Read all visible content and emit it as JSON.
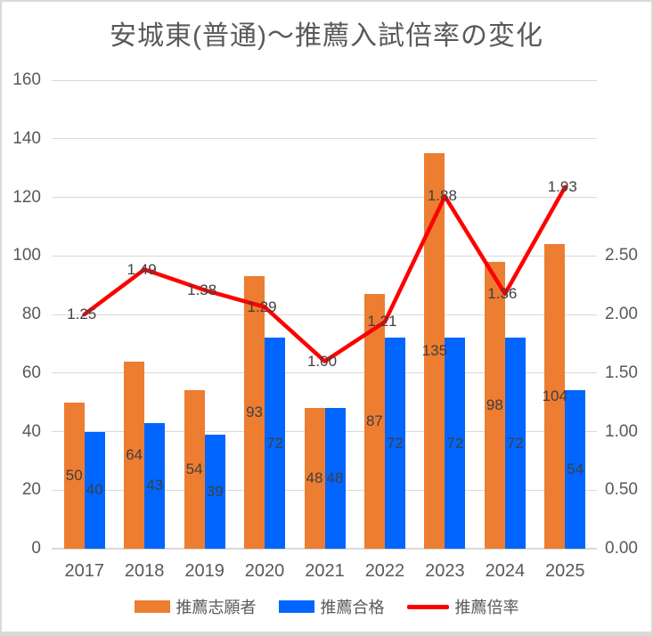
{
  "colors": {
    "applicants_bar": "#ED7D31",
    "accepted_bar": "#0066FF",
    "ratio_line": "#FF0000",
    "title_text": "#595959",
    "axis_text": "#595959",
    "data_label_text": "#3F3F3F",
    "gridline": "#D9D9D9",
    "frame_border": "#D9D9D9"
  },
  "chart_data": {
    "type": "bar",
    "subtype": "combo-bar-line",
    "title": "安城東(普通)～推薦入試倍率の変化",
    "categories": [
      "2017",
      "2018",
      "2019",
      "2020",
      "2021",
      "2022",
      "2023",
      "2024",
      "2025"
    ],
    "series": [
      {
        "name": "推薦志願者",
        "type": "bar",
        "axis": "left",
        "color": "#ED7D31",
        "values": [
          50,
          64,
          54,
          93,
          48,
          87,
          135,
          98,
          104
        ],
        "value_labels": [
          "50",
          "64",
          "54",
          "93",
          "48",
          "87",
          "135",
          "98",
          "104"
        ],
        "label_position": "center"
      },
      {
        "name": "推薦合格",
        "type": "bar",
        "axis": "left",
        "color": "#0066FF",
        "values": [
          40,
          43,
          39,
          72,
          48,
          72,
          72,
          72,
          54
        ],
        "value_labels": [
          "40",
          "43",
          "39",
          "72",
          "48",
          "72",
          "72",
          "72",
          "54"
        ],
        "label_position": "center"
      },
      {
        "name": "推薦倍率",
        "type": "line",
        "axis": "right",
        "color": "#FF0000",
        "values": [
          1.25,
          1.49,
          1.38,
          1.29,
          1.0,
          1.21,
          1.88,
          1.36,
          1.93
        ],
        "value_labels": [
          "1.25",
          "1.49",
          "1.38",
          "1.29",
          "1.00",
          "1.21",
          "1.88",
          "1.36",
          "1.93"
        ],
        "label_position": "on-point"
      }
    ],
    "left_axis": {
      "min": 0,
      "max": 160,
      "step": 20,
      "tick_labels": [
        "0",
        "20",
        "40",
        "60",
        "80",
        "100",
        "120",
        "140",
        "160"
      ]
    },
    "right_axis": {
      "min": 0,
      "max": 2.5,
      "step": 0.5,
      "tick_labels": [
        "0.00",
        "0.50",
        "1.00",
        "1.50",
        "2.00",
        "2.50"
      ]
    },
    "grid": true,
    "legend": {
      "position": "bottom",
      "entries": [
        {
          "label": "推薦志願者",
          "marker": "bar",
          "color": "#ED7D31"
        },
        {
          "label": "推薦合格",
          "marker": "bar",
          "color": "#0066FF"
        },
        {
          "label": "推薦倍率",
          "marker": "line",
          "color": "#FF0000"
        }
      ]
    }
  }
}
